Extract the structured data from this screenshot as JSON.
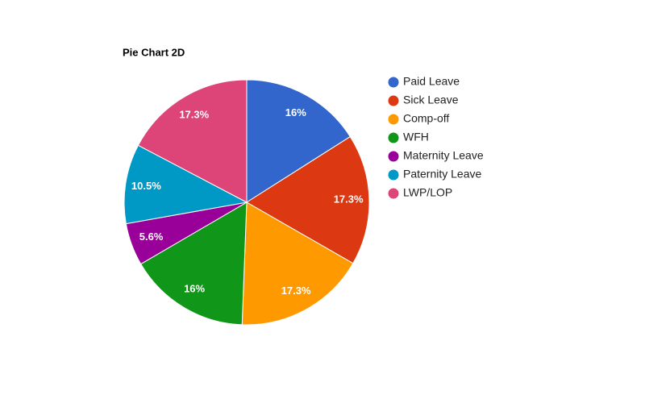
{
  "chart_data": {
    "type": "pie",
    "title": "Pie Chart 2D",
    "categories": [
      "Paid Leave",
      "Sick Leave",
      "Comp-off",
      "WFH",
      "Maternity Leave",
      "Paternity Leave",
      "LWP/LOP"
    ],
    "values": [
      16,
      17.3,
      17.3,
      16,
      5.6,
      10.5,
      17.3
    ],
    "value_labels": [
      "16%",
      "17.3%",
      "17.3%",
      "16%",
      "5.6%",
      "10.5%",
      "17.3%"
    ],
    "colors": [
      "#3366cc",
      "#dc3912",
      "#ff9900",
      "#109618",
      "#990099",
      "#0099c6",
      "#dd4477"
    ],
    "legend": "right"
  }
}
